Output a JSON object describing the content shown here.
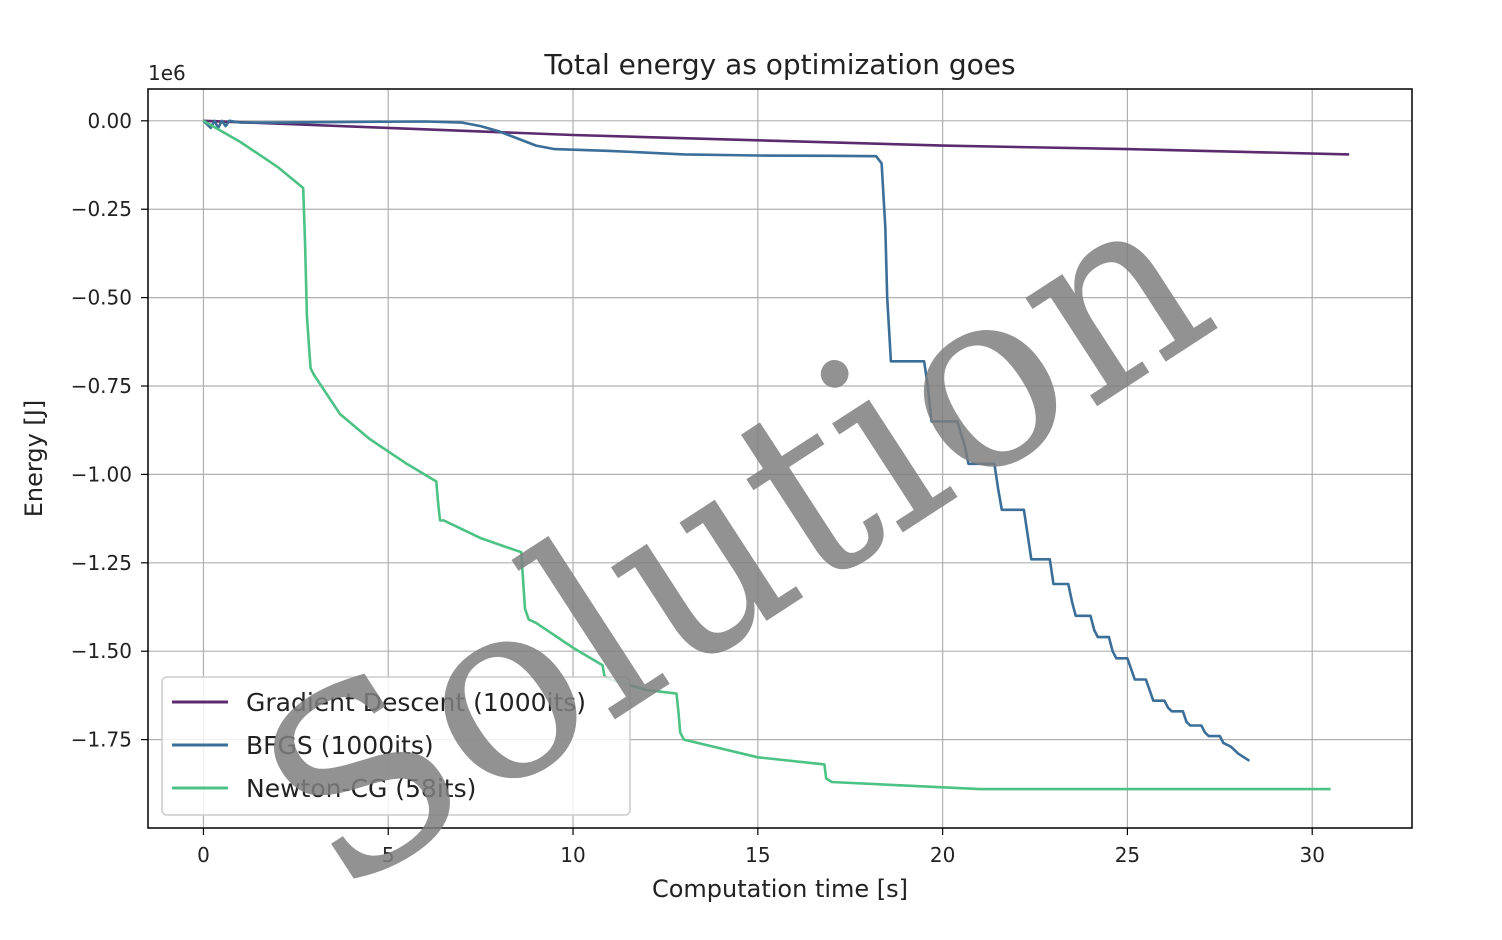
{
  "chart_data": {
    "type": "line",
    "title": "Total energy as optimization goes",
    "xlabel": "Computation time [s]",
    "ylabel": "Energy [J]",
    "y_offset_text": "1e6",
    "y_scale_factor": 1000000,
    "xlim": [
      -1.5,
      32.7
    ],
    "ylim": [
      -2.0,
      0.09
    ],
    "xticks": [
      0,
      5,
      10,
      15,
      20,
      25,
      30
    ],
    "xtick_labels": [
      "0",
      "5",
      "10",
      "15",
      "20",
      "25",
      "30"
    ],
    "yticks": [
      0.0,
      -0.25,
      -0.5,
      -0.75,
      -1.0,
      -1.25,
      -1.5,
      -1.75
    ],
    "ytick_labels": [
      "0.00",
      "−0.25",
      "−0.50",
      "−0.75",
      "−1.00",
      "−1.25",
      "−1.50",
      "−1.75"
    ],
    "grid": true,
    "legend_position": "lower-left",
    "watermark": "Solution",
    "series": [
      {
        "name": "Gradient Descent (1000its)",
        "color": "#5c2a6e",
        "x": [
          0,
          5,
          10,
          15,
          20,
          25,
          31
        ],
        "y": [
          0.0,
          -0.02,
          -0.04,
          -0.055,
          -0.07,
          -0.08,
          -0.095
        ]
      },
      {
        "name": "BFGS (1000its)",
        "color": "#3b6e98",
        "x": [
          0,
          0.2,
          0.3,
          0.4,
          0.5,
          0.6,
          0.7,
          1,
          2,
          4,
          6,
          7,
          7.5,
          8,
          8.5,
          9,
          9.5,
          11,
          13,
          15,
          17,
          18.2,
          18.35,
          18.45,
          18.5,
          18.6,
          18.8,
          19.1,
          19.5,
          19.6,
          19.7,
          20,
          20.4,
          20.6,
          20.7,
          21,
          21.4,
          21.5,
          21.6,
          22,
          22.2,
          22.3,
          22.4,
          22.8,
          22.9,
          23,
          23.4,
          23.5,
          23.6,
          24,
          24.1,
          24.2,
          24.5,
          24.6,
          24.7,
          25,
          25.1,
          25.2,
          25.5,
          25.6,
          25.7,
          26,
          26.1,
          26.2,
          26.5,
          26.6,
          26.7,
          27,
          27.1,
          27.2,
          27.5,
          27.6,
          27.8,
          28.0,
          28.3
        ],
        "y": [
          0.0,
          -0.02,
          0.0,
          -0.02,
          0.0,
          -0.015,
          0.0,
          -0.005,
          -0.005,
          -0.003,
          -0.002,
          -0.005,
          -0.015,
          -0.03,
          -0.05,
          -0.07,
          -0.08,
          -0.085,
          -0.095,
          -0.098,
          -0.099,
          -0.1,
          -0.12,
          -0.3,
          -0.5,
          -0.68,
          -0.68,
          -0.68,
          -0.68,
          -0.75,
          -0.85,
          -0.85,
          -0.85,
          -0.92,
          -0.97,
          -0.97,
          -0.97,
          -1.04,
          -1.1,
          -1.1,
          -1.1,
          -1.17,
          -1.24,
          -1.24,
          -1.24,
          -1.31,
          -1.31,
          -1.36,
          -1.4,
          -1.4,
          -1.44,
          -1.46,
          -1.46,
          -1.5,
          -1.52,
          -1.52,
          -1.55,
          -1.58,
          -1.58,
          -1.61,
          -1.64,
          -1.64,
          -1.66,
          -1.67,
          -1.67,
          -1.7,
          -1.71,
          -1.71,
          -1.73,
          -1.74,
          -1.74,
          -1.76,
          -1.77,
          -1.79,
          -1.81
        ]
      },
      {
        "name": "Newton-CG (58its)",
        "color": "#4cc285",
        "x": [
          0,
          1,
          2,
          2.7,
          2.75,
          2.8,
          2.85,
          2.9,
          3,
          3.7,
          4.5,
          5.5,
          6.3,
          6.35,
          6.4,
          6.5,
          7.5,
          8.6,
          8.65,
          8.7,
          8.8,
          9,
          10,
          10.8,
          10.85,
          11,
          12,
          12.8,
          12.85,
          12.9,
          13,
          15,
          16.8,
          16.85,
          17,
          19,
          21,
          25,
          30.5
        ],
        "y": [
          0.0,
          -0.06,
          -0.13,
          -0.19,
          -0.35,
          -0.55,
          -0.63,
          -0.7,
          -0.72,
          -0.83,
          -0.9,
          -0.97,
          -1.02,
          -1.08,
          -1.13,
          -1.13,
          -1.18,
          -1.22,
          -1.3,
          -1.38,
          -1.41,
          -1.42,
          -1.49,
          -1.54,
          -1.57,
          -1.58,
          -1.61,
          -1.62,
          -1.67,
          -1.73,
          -1.75,
          -1.8,
          -1.82,
          -1.86,
          -1.87,
          -1.88,
          -1.89,
          -1.89,
          -1.89
        ]
      }
    ]
  }
}
